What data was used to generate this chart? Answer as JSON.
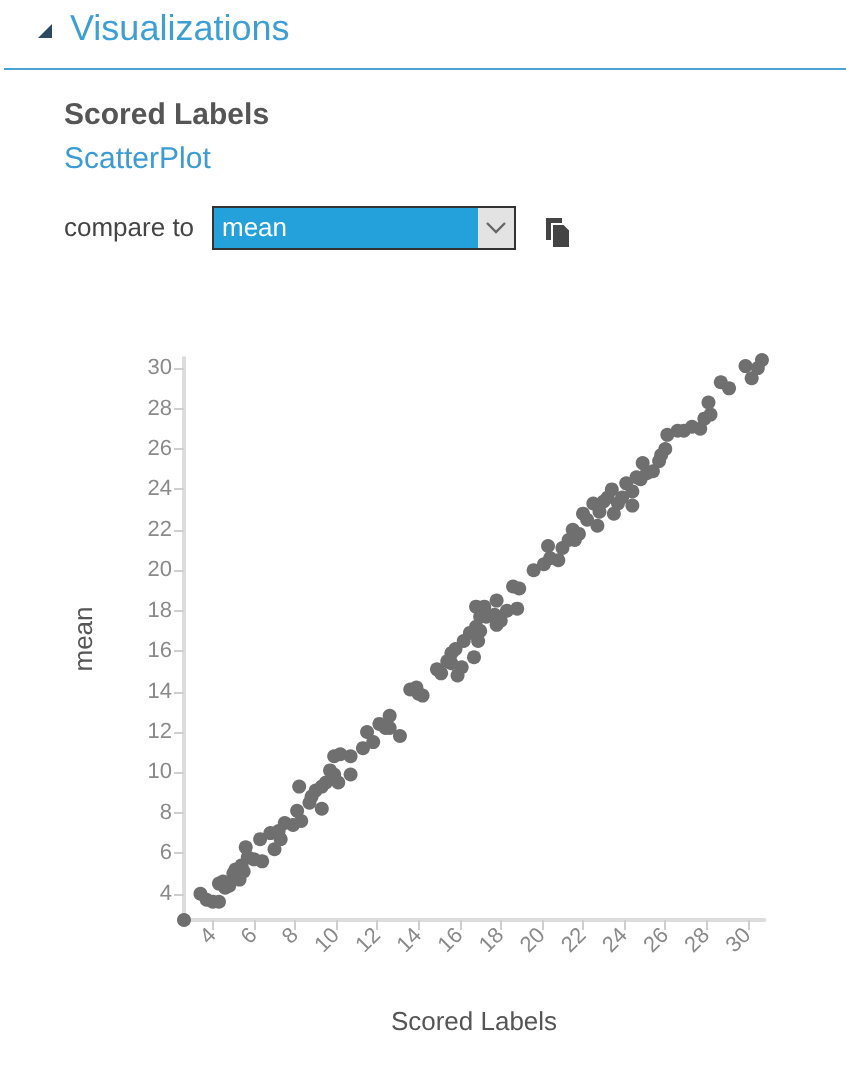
{
  "chart_data": {
    "type": "scatter",
    "title": "Scored Labels",
    "subtitle": "ScatterPlot",
    "xlabel": "Scored Labels",
    "ylabel": "mean",
    "annotations": [
      "Visualizations",
      "compare to",
      "mean"
    ],
    "x": [
      2.6,
      3.4,
      3.7,
      4.0,
      4.3,
      4.3,
      4.6,
      4.8,
      5.1,
      5.4,
      5.3,
      5.6,
      5.7,
      6.0,
      6.3,
      6.4,
      6.8,
      7.0,
      7.2,
      7.5,
      7.3,
      8.1,
      7.9,
      8.2,
      8.3,
      8.7,
      8.8,
      9.0,
      9.3,
      9.3,
      9.5,
      9.7,
      9.9,
      10.1,
      9.9,
      10.2,
      10.7,
      10.7,
      11.3,
      11.5,
      11.8,
      12.1,
      12.4,
      12.6,
      12.6,
      13.1,
      13.6,
      13.9,
      14.2,
      14.0,
      14.9,
      15.1,
      15.4,
      15.6,
      15.8,
      15.9,
      16.1,
      16.8,
      4.5,
      5.0,
      5.5,
      15.6,
      16.2,
      16.7,
      16.9,
      17.0,
      17.2,
      17.3,
      17.7,
      17.8,
      18.3,
      18.8,
      16.5,
      16.8,
      17.0,
      17.8,
      18.0,
      18.6,
      18.9,
      19.6,
      20.1,
      20.3,
      20.4,
      20.8,
      21.0,
      21.3,
      21.5,
      21.6,
      21.8,
      22.0,
      22.2,
      22.5,
      22.7,
      22.8,
      23.0,
      23.2,
      23.4,
      23.5,
      23.7,
      23.9,
      24.1,
      24.4,
      24.4,
      24.6,
      24.8,
      24.9,
      25.1,
      25.4,
      25.7,
      25.8,
      26.0,
      26.1,
      26.6,
      26.9,
      27.3,
      27.7,
      27.9,
      28.2,
      28.1,
      28.7,
      29.1,
      29.9,
      30.2,
      30.5,
      30.7
    ],
    "values": [
      2.7,
      4.0,
      3.7,
      3.6,
      3.6,
      4.5,
      4.3,
      4.4,
      5.2,
      5.4,
      4.7,
      6.3,
      5.8,
      5.7,
      6.7,
      5.6,
      7.0,
      6.2,
      7.1,
      7.5,
      6.7,
      8.1,
      7.4,
      9.3,
      7.6,
      8.5,
      8.8,
      9.1,
      8.2,
      9.3,
      9.5,
      10.1,
      9.9,
      9.5,
      10.8,
      10.9,
      10.8,
      9.9,
      11.2,
      12.0,
      11.5,
      12.4,
      12.2,
      12.8,
      12.2,
      11.8,
      14.1,
      14.2,
      13.8,
      13.9,
      15.1,
      14.9,
      15.5,
      15.9,
      16.1,
      14.8,
      15.2,
      18.2,
      4.6,
      5.0,
      5.1,
      15.4,
      16.5,
      15.7,
      16.5,
      17.0,
      18.2,
      17.7,
      17.8,
      17.3,
      18.0,
      18.1,
      16.9,
      17.2,
      17.7,
      18.5,
      17.5,
      19.2,
      19.1,
      20.0,
      20.3,
      21.2,
      20.6,
      20.5,
      21.1,
      21.5,
      22.0,
      21.5,
      21.8,
      22.8,
      22.5,
      23.3,
      22.2,
      22.9,
      23.4,
      23.6,
      24.0,
      22.8,
      23.3,
      23.6,
      24.3,
      23.9,
      23.2,
      24.6,
      24.5,
      25.3,
      24.8,
      24.9,
      25.4,
      25.7,
      26.0,
      26.7,
      26.9,
      26.9,
      27.1,
      27.0,
      27.5,
      27.7,
      28.3,
      29.3,
      29.0,
      30.1,
      29.5,
      30.0,
      30.4
    ],
    "color": "#6f6f6f",
    "xlim": [
      2.6,
      30.8
    ],
    "ylim": [
      2.7,
      30.5
    ],
    "xticks": [
      4,
      6,
      8,
      10,
      12,
      14,
      16,
      18,
      20,
      22,
      24,
      26,
      28,
      30
    ],
    "yticks": [
      4,
      6,
      8,
      10,
      12,
      14,
      16,
      18,
      20,
      22,
      24,
      26,
      28,
      30
    ],
    "grid": false,
    "marker": "circle"
  }
}
